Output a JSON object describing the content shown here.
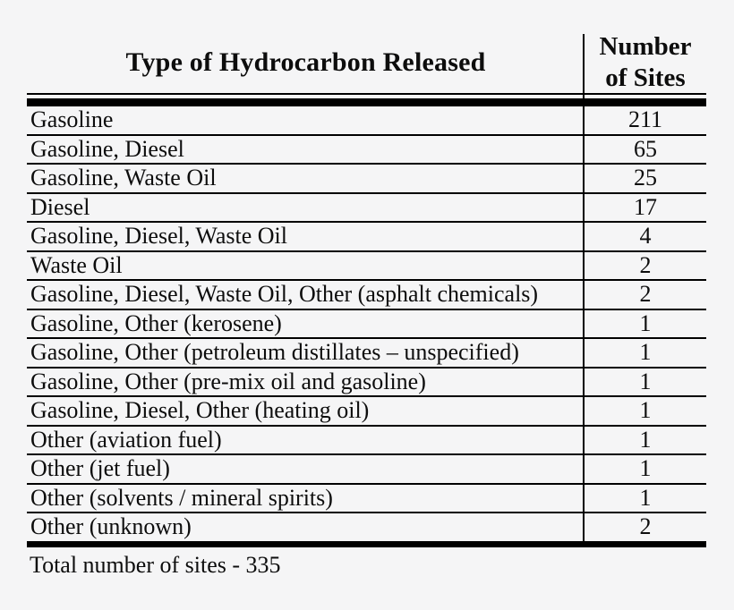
{
  "page": {
    "background_color": "#f5f5f6",
    "line_color": "#000000",
    "text_color": "#0d0d0d"
  },
  "table": {
    "header": {
      "col1": "Type of Hydrocarbon Released",
      "col2": "Number of Sites"
    },
    "rows": [
      {
        "type": "Gasoline",
        "count": "211"
      },
      {
        "type": "Gasoline, Diesel",
        "count": "65"
      },
      {
        "type": "Gasoline, Waste Oil",
        "count": "25"
      },
      {
        "type": "Diesel",
        "count": "17"
      },
      {
        "type": "Gasoline, Diesel, Waste Oil",
        "count": "4"
      },
      {
        "type": "Waste Oil",
        "count": "2"
      },
      {
        "type": "Gasoline, Diesel, Waste Oil, Other (asphalt chemicals)",
        "count": "2"
      },
      {
        "type": "Gasoline, Other (kerosene)",
        "count": "1"
      },
      {
        "type": "Gasoline, Other (petroleum distillates – unspecified)",
        "count": "1"
      },
      {
        "type": "Gasoline, Other (pre-mix oil and gasoline)",
        "count": "1"
      },
      {
        "type": "Gasoline, Diesel, Other (heating oil)",
        "count": "1"
      },
      {
        "type": "Other (aviation fuel)",
        "count": "1"
      },
      {
        "type": "Other (jet fuel)",
        "count": "1"
      },
      {
        "type": "Other (solvents / mineral spirits)",
        "count": "1"
      },
      {
        "type": "Other (unknown)",
        "count": "2"
      }
    ],
    "footer": "Total number of sites - 335"
  },
  "chart_data": {
    "type": "table",
    "title": "",
    "columns": [
      "Type of Hydrocarbon Released",
      "Number of Sites"
    ],
    "categories": [
      "Gasoline",
      "Gasoline, Diesel",
      "Gasoline, Waste Oil",
      "Diesel",
      "Gasoline, Diesel, Waste Oil",
      "Waste Oil",
      "Gasoline, Diesel, Waste Oil, Other (asphalt chemicals)",
      "Gasoline, Other (kerosene)",
      "Gasoline, Other (petroleum distillates – unspecified)",
      "Gasoline, Other (pre-mix oil and gasoline)",
      "Gasoline, Diesel, Other (heating oil)",
      "Other (aviation fuel)",
      "Other (jet fuel)",
      "Other (solvents / mineral spirits)",
      "Other (unknown)"
    ],
    "values": [
      211,
      65,
      25,
      17,
      4,
      2,
      2,
      1,
      1,
      1,
      1,
      1,
      1,
      1,
      2
    ],
    "total": 335,
    "footnote": "Total number of sites - 335"
  }
}
